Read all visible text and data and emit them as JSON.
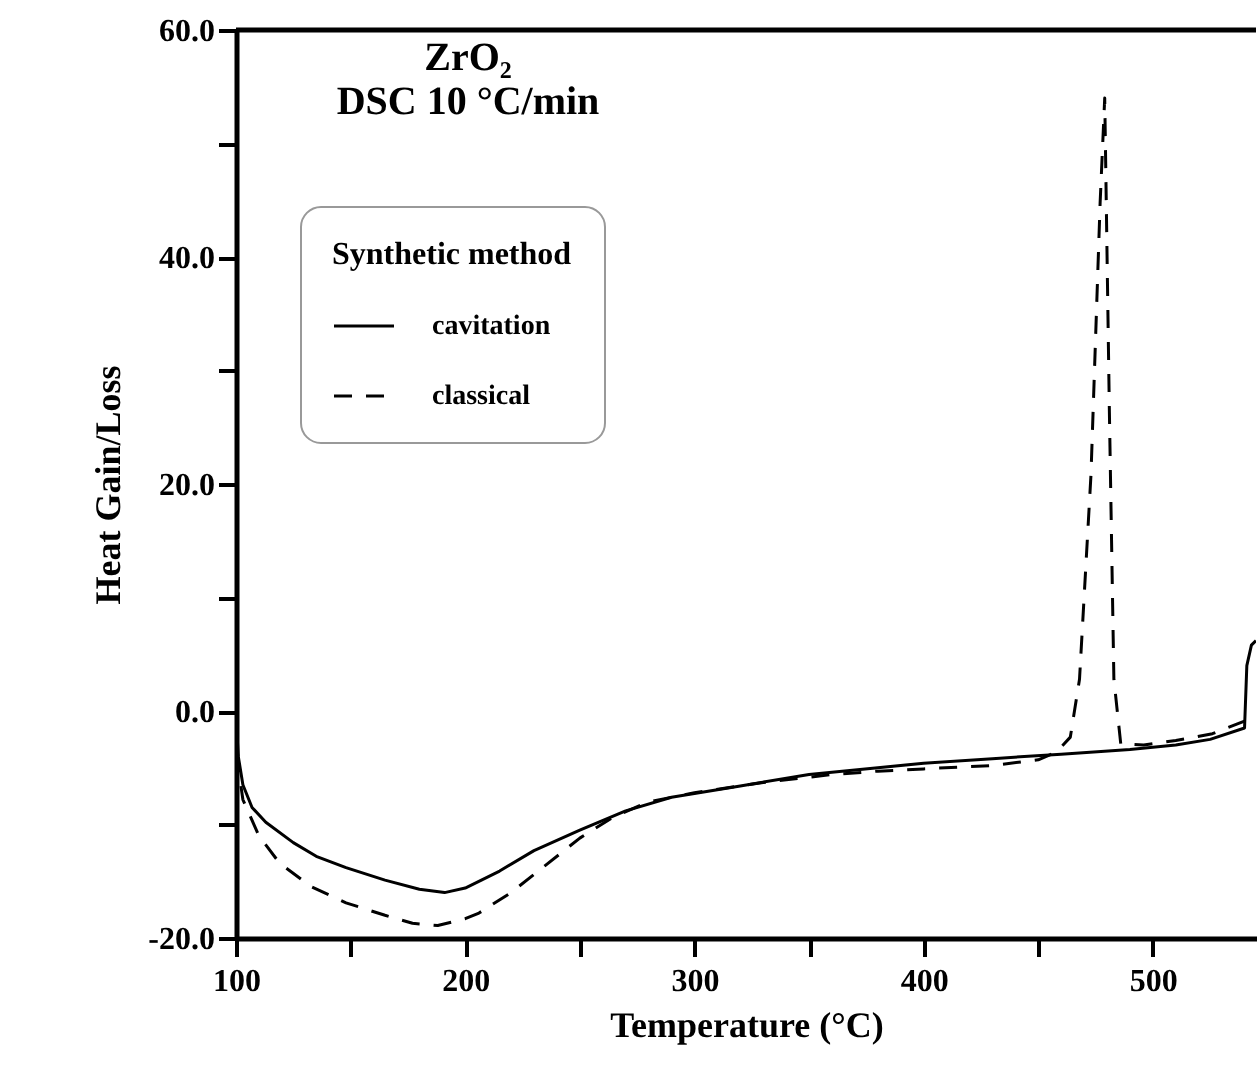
{
  "chart_data": {
    "type": "line",
    "title": "ZrO₂",
    "subtitle": "DSC 10 °C/min",
    "xlabel": "Temperature (°C)",
    "ylabel": "Heat Gain/Loss",
    "legend_title": "Synthetic method",
    "legend": "top left",
    "grid": false,
    "marker": "none",
    "xlim": [
      100,
      545
    ],
    "xticks": [
      100,
      {
        "value": 150,
        "label": null
      },
      200,
      {
        "value": 250,
        "label": null
      },
      300,
      {
        "value": 350,
        "label": null
      },
      400,
      {
        "value": 450,
        "label": null
      },
      500
    ],
    "ylim": [
      -20,
      60
    ],
    "yticks": [
      {
        "value": -20,
        "label": "-20.0"
      },
      {
        "value": -10,
        "label": null
      },
      {
        "value": 0,
        "label": "0.0"
      },
      {
        "value": 10,
        "label": null
      },
      {
        "value": 20,
        "label": "20.0"
      },
      {
        "value": 30,
        "label": null
      },
      {
        "value": 40,
        "label": "40.0"
      },
      {
        "value": 50,
        "label": null
      },
      {
        "value": 60,
        "label": "60.0"
      }
    ],
    "series": [
      {
        "name": "cavitation",
        "color": "#000000",
        "line_style": "solid",
        "x": [
          100,
          101,
          103,
          107,
          113,
          125,
          135,
          148,
          165,
          180,
          191,
          200,
          215,
          230,
          250,
          270,
          290,
          320,
          350,
          380,
          400,
          430,
          460,
          490,
          510,
          525,
          540,
          541,
          543,
          545
        ],
        "values": [
          -0.5,
          -4,
          -6.5,
          -8.5,
          -9.8,
          -11.6,
          -12.8,
          -13.8,
          -14.9,
          -15.7,
          -16,
          -15.6,
          -14.1,
          -12.3,
          -10.5,
          -8.8,
          -7.6,
          -6.6,
          -5.6,
          -5,
          -4.6,
          -4.2,
          -3.8,
          -3.4,
          -3,
          -2.5,
          -1.5,
          4,
          5.8,
          6.2
        ]
      },
      {
        "name": "classical",
        "color": "#000000",
        "line_style": "dashed",
        "x": [
          100,
          101,
          103,
          110,
          119,
          133,
          148,
          165,
          177,
          188,
          200,
          206,
          220,
          235,
          250,
          265,
          280,
          300,
          330,
          360,
          380,
          400,
          430,
          450,
          458,
          464,
          468,
          473,
          477,
          479,
          481,
          483,
          486,
          496,
          510,
          526,
          545
        ],
        "values": [
          -1,
          -5,
          -7.8,
          -11,
          -13.4,
          -15.5,
          -16.9,
          -18,
          -18.7,
          -18.9,
          -18.3,
          -17.8,
          -16,
          -13.6,
          -11.2,
          -9.3,
          -8,
          -7.2,
          -6.3,
          -5.6,
          -5.3,
          -5.1,
          -4.8,
          -4.3,
          -3.6,
          -2.3,
          2.8,
          20.8,
          44.8,
          54,
          26.8,
          2.8,
          -2.9,
          -3,
          -2.6,
          -2,
          -0.5
        ]
      }
    ]
  }
}
